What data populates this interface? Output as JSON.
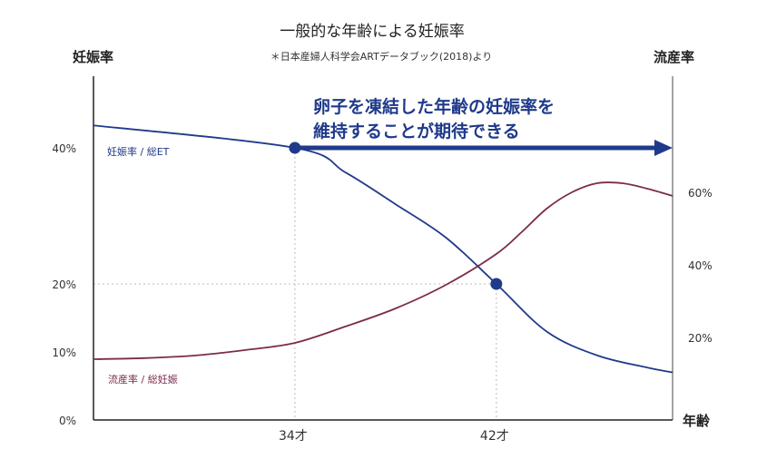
{
  "chart_data": {
    "type": "line",
    "title": "一般的な年齢による妊娠率",
    "subtitle": "＊日本産婦人科学会ARTデータブック(2018)より",
    "xlabel": "年齢",
    "ylabel_left": "妊娠率",
    "ylabel_right": "流産率",
    "xlim": [
      26,
      49
    ],
    "ylim_left": [
      0,
      50
    ],
    "ylim_right": [
      0,
      72
    ],
    "x_ticks": [
      {
        "value": 34,
        "label": "34才"
      },
      {
        "value": 42,
        "label": "42才"
      }
    ],
    "left_ticks": [
      {
        "value": 0,
        "label": "0%"
      },
      {
        "value": 10,
        "label": "10%"
      },
      {
        "value": 20,
        "label": "20%"
      },
      {
        "value": 40,
        "label": "40%"
      }
    ],
    "right_ticks": [
      {
        "value": 20,
        "label": "20%"
      },
      {
        "value": 40,
        "label": "40%"
      },
      {
        "value": 60,
        "label": "60%"
      }
    ],
    "grid": "dotted guides at 34才 and 42才, 20% guide",
    "series": [
      {
        "name": "妊娠率 / 総ET",
        "axis": "left",
        "color": "#1f3a8a",
        "x": [
          26,
          34,
          36,
          38,
          40,
          42,
          44,
          46,
          48,
          49
        ],
        "y": [
          43.3,
          40,
          36.4,
          31.7,
          26.8,
          20,
          13,
          9.5,
          7.7,
          7
        ]
      },
      {
        "name": "流産率 / 総妊娠",
        "axis": "right",
        "color": "#7b2b4d",
        "x": [
          26,
          28,
          30,
          32,
          34,
          36,
          38,
          40,
          42,
          43,
          44,
          45,
          46,
          47,
          48,
          49
        ],
        "y": [
          14,
          14.3,
          15,
          16.5,
          18.5,
          23,
          28,
          34.5,
          43,
          49,
          55.5,
          60,
          62.5,
          62.5,
          61,
          59
        ]
      }
    ],
    "markers": [
      {
        "series": 0,
        "x": 34,
        "y": 40
      },
      {
        "series": 0,
        "x": 42,
        "y": 20
      }
    ],
    "annotation": {
      "lines": [
        "卵子を凍結した年齢の妊娠率を",
        "維持することが期待できる"
      ],
      "arrow_from_x": 34,
      "arrow_level": 40
    }
  }
}
